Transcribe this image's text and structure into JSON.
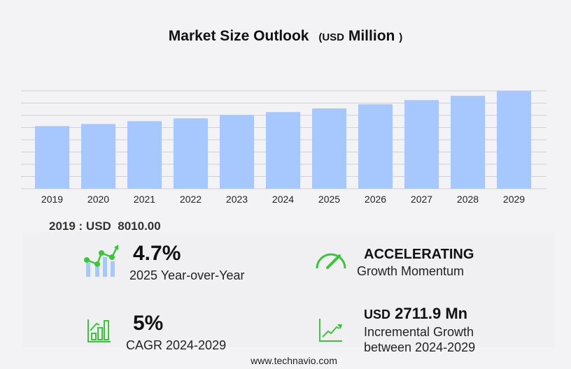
{
  "title": {
    "main": "Market Size Outlook",
    "paren_open": "(",
    "unit": "USD",
    "unit_word": "Million",
    "paren_close": ")"
  },
  "chart_data": {
    "type": "bar",
    "categories": [
      "2019",
      "2020",
      "2021",
      "2022",
      "2023",
      "2024",
      "2025",
      "2026",
      "2027",
      "2028",
      "2029"
    ],
    "values": [
      8010,
      8280,
      8640,
      9000,
      9450,
      9810,
      10270,
      10800,
      11340,
      11880,
      12520
    ],
    "ylim": [
      0,
      12520
    ],
    "grid": true,
    "bar_color": "#a6c8ff",
    "xlabel": "",
    "ylabel": ""
  },
  "base_label": "2019 : USD  8010.00",
  "kpis": {
    "yoy": {
      "value": "4.7%",
      "label": "2025 Year-over-Year",
      "icon": "growth-chart-icon"
    },
    "momentum": {
      "value": "ACCELERATING",
      "label": "Growth Momentum",
      "icon": "speedometer-icon"
    },
    "cagr": {
      "value": "5%",
      "label": "CAGR 2024-2029",
      "icon": "bar-chart-icon"
    },
    "incremental": {
      "prefix": "USD",
      "value": "2711.9 Mn",
      "label1": "Incremental Growth",
      "label2": "between 2024-2029",
      "icon": "trend-line-icon"
    }
  },
  "accent_color": "#3cc43c",
  "footer": "www.technavio.com"
}
